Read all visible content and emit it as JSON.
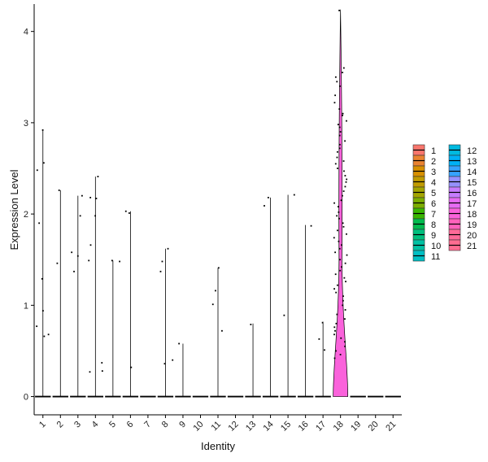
{
  "chart_data": {
    "type": "violin",
    "xlabel": "Identity",
    "ylabel": "Expression Level",
    "ylim": [
      -0.2,
      4.3
    ],
    "yticks": [
      0,
      1,
      2,
      3,
      4
    ],
    "categories": [
      "1",
      "2",
      "3",
      "4",
      "5",
      "6",
      "7",
      "8",
      "9",
      "10",
      "11",
      "12",
      "13",
      "14",
      "15",
      "16",
      "17",
      "18",
      "19",
      "20",
      "21"
    ],
    "colors": [
      "#F8766D",
      "#EA8331",
      "#D89000",
      "#C09B00",
      "#A3A500",
      "#7CAE00",
      "#39B600",
      "#00BB4E",
      "#00BF7D",
      "#00C1A3",
      "#00BFC4",
      "#00BAE0",
      "#00B0F6",
      "#35A2FF",
      "#9590FF",
      "#C77CFF",
      "#E76BF3",
      "#FA62DB",
      "#FF62BC",
      "#FF6A98",
      "#FF6C91"
    ],
    "grid": false,
    "legend_position": "right",
    "groups": [
      {
        "name": "1",
        "max": 2.92,
        "points": [
          2.92,
          2.56,
          2.48,
          1.9,
          1.29,
          0.94,
          0.77,
          0.68,
          0.66
        ]
      },
      {
        "name": "2",
        "max": 2.26,
        "points": [
          2.26,
          1.46
        ]
      },
      {
        "name": "3",
        "max": 2.2,
        "points": [
          2.2,
          1.98,
          1.58,
          1.54,
          1.37
        ]
      },
      {
        "name": "4",
        "max": 2.41,
        "points": [
          2.41,
          2.18,
          2.17,
          1.98,
          1.66,
          1.49,
          0.37,
          0.28,
          0.27
        ]
      },
      {
        "name": "5",
        "max": 1.49,
        "points": [
          1.49,
          1.48
        ]
      },
      {
        "name": "6",
        "max": 2.03,
        "points": [
          2.03,
          2.01,
          0.32
        ]
      },
      {
        "name": "7",
        "max": 0,
        "points": []
      },
      {
        "name": "8",
        "max": 1.62,
        "points": [
          1.62,
          1.48,
          1.37,
          0.4,
          0.36
        ]
      },
      {
        "name": "9",
        "max": 0.58,
        "points": [
          0.58
        ]
      },
      {
        "name": "10",
        "max": 0,
        "points": []
      },
      {
        "name": "11",
        "max": 1.41,
        "points": [
          1.41,
          1.16,
          1.01,
          0.72
        ]
      },
      {
        "name": "12",
        "max": 0,
        "points": []
      },
      {
        "name": "13",
        "max": 0.8,
        "points": [
          0.79
        ]
      },
      {
        "name": "14",
        "max": 2.18,
        "points": [
          2.18,
          2.09
        ]
      },
      {
        "name": "15",
        "max": 2.21,
        "points": [
          2.21,
          0.89
        ]
      },
      {
        "name": "16",
        "max": 1.88,
        "points": [
          1.87
        ]
      },
      {
        "name": "17",
        "max": 0.82,
        "points": [
          0.81,
          0.63,
          0.51
        ]
      },
      {
        "name": "18",
        "max": 4.24,
        "points": [
          4.23,
          3.6,
          3.55,
          3.5,
          3.45,
          3.4,
          3.3,
          3.22,
          3.15,
          3.1,
          3.08,
          3.02,
          2.98,
          2.95,
          2.9,
          2.86,
          2.8,
          2.76,
          2.72,
          2.68,
          2.62,
          2.58,
          2.55,
          2.5,
          2.47,
          2.42,
          2.38,
          2.35,
          2.3,
          2.25,
          2.2,
          2.15,
          2.12,
          2.08,
          2.02,
          1.98,
          1.95,
          1.9,
          1.86,
          1.82,
          1.78,
          1.74,
          1.7,
          1.66,
          1.62,
          1.58,
          1.55,
          1.5,
          1.46,
          1.42,
          1.38,
          1.34,
          1.3,
          1.26,
          1.22,
          1.18,
          1.14,
          1.1,
          1.05,
          1.0,
          0.95,
          0.9,
          0.85,
          0.8,
          0.76,
          0.72,
          0.68,
          0.64,
          0.6,
          0.55,
          0.5,
          0.46,
          0.42
        ]
      },
      {
        "name": "19",
        "max": 0,
        "points": []
      },
      {
        "name": "20",
        "max": 0,
        "points": []
      },
      {
        "name": "21",
        "max": 0,
        "points": []
      }
    ]
  }
}
